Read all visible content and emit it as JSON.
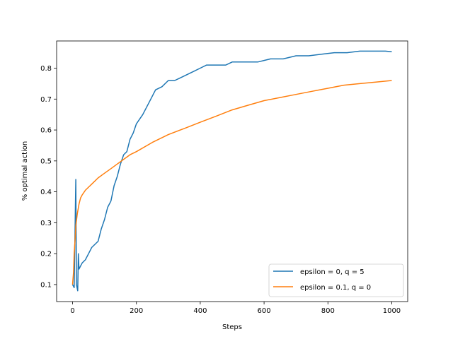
{
  "chart_data": {
    "type": "line",
    "xlabel": "Steps",
    "ylabel": "% optimal action",
    "xlim": [
      -50,
      1050
    ],
    "ylim": [
      0.045,
      0.888
    ],
    "xticks": [
      0,
      200,
      400,
      600,
      800,
      1000
    ],
    "yticks": [
      0.1,
      0.2,
      0.3,
      0.4,
      0.5,
      0.6,
      0.7,
      0.8
    ],
    "xtick_labels": [
      "0",
      "200",
      "400",
      "600",
      "800",
      "1000"
    ],
    "ytick_labels": [
      "0.1",
      "0.2",
      "0.3",
      "0.4",
      "0.5",
      "0.6",
      "0.7",
      "0.8"
    ],
    "grid": false,
    "legend_position": "lower-right",
    "series": [
      {
        "name": "epsilon = 0, q = 5",
        "color": "#1f77b4",
        "x": [
          0,
          5,
          10,
          12,
          14,
          16,
          18,
          20,
          25,
          30,
          40,
          50,
          60,
          70,
          80,
          90,
          100,
          110,
          120,
          130,
          140,
          150,
          160,
          170,
          180,
          190,
          200,
          220,
          240,
          260,
          280,
          300,
          320,
          340,
          360,
          380,
          400,
          420,
          440,
          460,
          480,
          500,
          540,
          580,
          620,
          660,
          700,
          740,
          780,
          820,
          860,
          900,
          940,
          980,
          1000
        ],
        "y": [
          0.1,
          0.09,
          0.44,
          0.1,
          0.09,
          0.08,
          0.2,
          0.15,
          0.16,
          0.17,
          0.18,
          0.2,
          0.22,
          0.23,
          0.24,
          0.28,
          0.31,
          0.35,
          0.37,
          0.42,
          0.45,
          0.49,
          0.52,
          0.53,
          0.57,
          0.59,
          0.62,
          0.65,
          0.69,
          0.73,
          0.74,
          0.76,
          0.76,
          0.77,
          0.78,
          0.79,
          0.8,
          0.81,
          0.81,
          0.81,
          0.81,
          0.82,
          0.82,
          0.82,
          0.83,
          0.83,
          0.84,
          0.84,
          0.845,
          0.85,
          0.85,
          0.855,
          0.855,
          0.855,
          0.853
        ]
      },
      {
        "name": "epsilon = 0.1, q = 0",
        "color": "#ff7f0e",
        "x": [
          0,
          3,
          5,
          8,
          10,
          15,
          20,
          25,
          30,
          40,
          50,
          60,
          70,
          80,
          100,
          120,
          140,
          160,
          180,
          200,
          250,
          300,
          350,
          400,
          450,
          500,
          550,
          600,
          650,
          700,
          750,
          800,
          850,
          900,
          950,
          1000
        ],
        "y": [
          0.1,
          0.14,
          0.2,
          0.25,
          0.29,
          0.33,
          0.36,
          0.38,
          0.39,
          0.405,
          0.415,
          0.425,
          0.435,
          0.445,
          0.46,
          0.475,
          0.49,
          0.505,
          0.52,
          0.53,
          0.56,
          0.585,
          0.605,
          0.625,
          0.645,
          0.665,
          0.68,
          0.695,
          0.705,
          0.715,
          0.725,
          0.735,
          0.745,
          0.75,
          0.755,
          0.76
        ]
      }
    ]
  }
}
